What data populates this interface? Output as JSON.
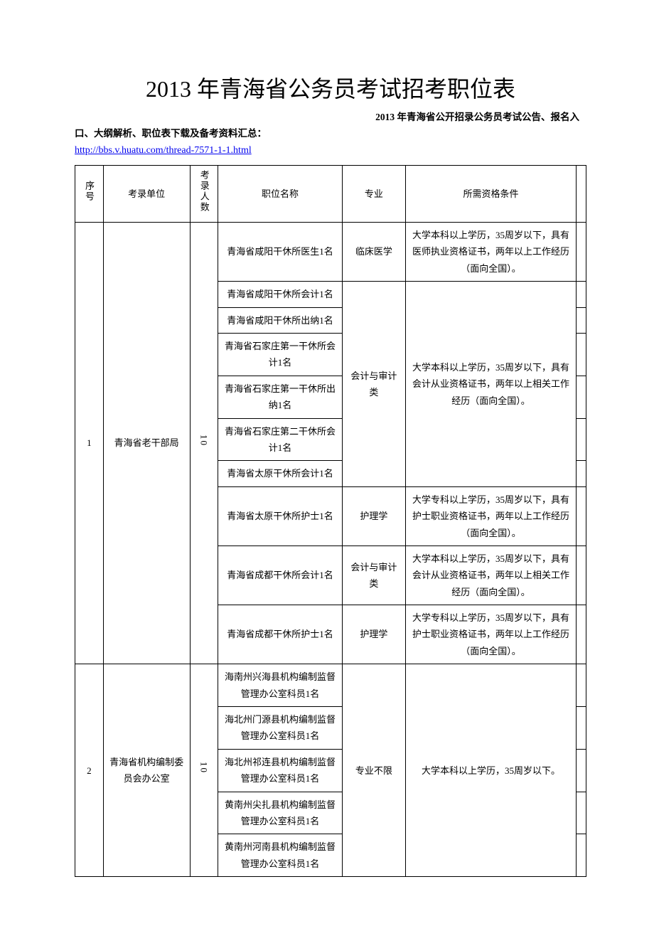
{
  "title": "2013 年青海省公务员考试招考职位表",
  "subtitle_right": "2013 年青海省公开招录公务员考试公告、报名入",
  "subtitle_left": "口、大纲解析、职位表下载及备考资料汇总：",
  "link_text": "http://bbs.v.huatu.com/thread-7571-1-1.html",
  "headers": {
    "seq": "序号",
    "unit": "考录单位",
    "count": "考录人数",
    "position": "职位名称",
    "major": "专业",
    "req": "所需资格条件"
  },
  "group1": {
    "seq": "1",
    "unit": "青海省老干部局",
    "count": "10",
    "rows": [
      {
        "pos": "青海省咸阳干休所医生1名",
        "major": "临床医学",
        "req": "大学本科以上学历，35周岁以下，具有医师执业资格证书，两年以上工作经历（面向全国）。"
      },
      {
        "pos": "青海省咸阳干休所会计1名"
      },
      {
        "pos": "青海省咸阳干休所出纳1名"
      },
      {
        "pos": "青海省石家庄第一干休所会计1名"
      },
      {
        "pos": "青海省石家庄第一干休所出纳1名"
      },
      {
        "pos": "青海省石家庄第二干休所会计1名"
      },
      {
        "pos": "青海省太原干休所会计1名"
      }
    ],
    "acc_major": "会计与审计类",
    "acc_req": "大学本科以上学历，35周岁以下，具有会计从业资格证书，两年以上相关工作经历（面向全国）。",
    "row8": {
      "pos": "青海省太原干休所护士1名",
      "major": "护理学",
      "req": "大学专科以上学历，35周岁以下，具有护士职业资格证书，两年以上工作经历（面向全国）。"
    },
    "row9": {
      "pos": "青海省成都干休所会计1名",
      "major": "会计与审计类",
      "req": "大学本科以上学历，35周岁以下，具有会计从业资格证书，两年以上相关工作经历（面向全国）。"
    },
    "row10": {
      "pos": "青海省成都干休所护士1名",
      "major": "护理学",
      "req": "大学专科以上学历，35周岁以下，具有护士职业资格证书，两年以上工作经历（面向全国）。"
    }
  },
  "group2": {
    "seq": "2",
    "unit": "青海省机构编制委员会办公室",
    "count": "10",
    "major": "专业不限",
    "req": "大学本科以上学历，35周岁以下。",
    "rows": [
      {
        "pos": "海南州兴海县机构编制监督管理办公室科员1名"
      },
      {
        "pos": "海北州门源县机构编制监督管理办公室科员1名"
      },
      {
        "pos": "海北州祁连县机构编制监督管理办公室科员1名"
      },
      {
        "pos": "黄南州尖扎县机构编制监督管理办公室科员1名"
      },
      {
        "pos": "黄南州河南县机构编制监督管理办公室科员1名"
      }
    ]
  }
}
